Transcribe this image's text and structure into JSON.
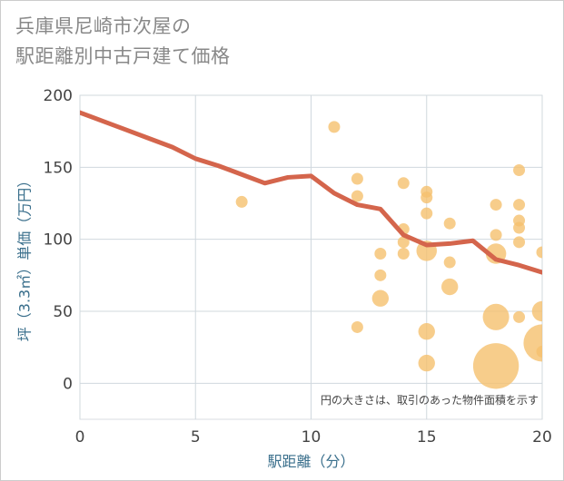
{
  "title_lines": [
    "兵庫県尼崎市次屋の",
    "駅距離別中古戸建て価格"
  ],
  "chart_data": {
    "type": "scatter",
    "xlabel": "駅距離（分）",
    "ylabel": "坪（3.3㎡）単価（万円）",
    "xlim": [
      0,
      20
    ],
    "ylim": [
      -25,
      200
    ],
    "xticks": [
      0,
      5,
      10,
      15,
      20
    ],
    "yticks": [
      0,
      50,
      100,
      150,
      200
    ],
    "grid": true,
    "note": "円の大きさは、取引のあった物件面積を示す",
    "bubble_color": "#f5c06e",
    "line_color": "#d4654c",
    "scatter": [
      {
        "x": 7,
        "y": 126,
        "size": 1
      },
      {
        "x": 11,
        "y": 178,
        "size": 1
      },
      {
        "x": 12,
        "y": 142,
        "size": 1
      },
      {
        "x": 12,
        "y": 130,
        "size": 1
      },
      {
        "x": 12,
        "y": 39,
        "size": 1
      },
      {
        "x": 13,
        "y": 90,
        "size": 1
      },
      {
        "x": 13,
        "y": 75,
        "size": 1
      },
      {
        "x": 13,
        "y": 59,
        "size": 2
      },
      {
        "x": 14,
        "y": 139,
        "size": 1
      },
      {
        "x": 14,
        "y": 107,
        "size": 1
      },
      {
        "x": 14,
        "y": 98,
        "size": 1
      },
      {
        "x": 14,
        "y": 90,
        "size": 1
      },
      {
        "x": 15,
        "y": 133,
        "size": 1
      },
      {
        "x": 15,
        "y": 129,
        "size": 1
      },
      {
        "x": 15,
        "y": 118,
        "size": 1
      },
      {
        "x": 15,
        "y": 92,
        "size": 3
      },
      {
        "x": 15,
        "y": 36,
        "size": 2
      },
      {
        "x": 15,
        "y": 14,
        "size": 2
      },
      {
        "x": 16,
        "y": 111,
        "size": 1
      },
      {
        "x": 16,
        "y": 84,
        "size": 1
      },
      {
        "x": 16,
        "y": 67,
        "size": 2
      },
      {
        "x": 18,
        "y": 124,
        "size": 1
      },
      {
        "x": 18,
        "y": 103,
        "size": 1
      },
      {
        "x": 18,
        "y": 90,
        "size": 3
      },
      {
        "x": 18,
        "y": 46,
        "size": 5
      },
      {
        "x": 18,
        "y": 12,
        "size": 15
      },
      {
        "x": 19,
        "y": 148,
        "size": 1
      },
      {
        "x": 19,
        "y": 124,
        "size": 1
      },
      {
        "x": 19,
        "y": 113,
        "size": 1
      },
      {
        "x": 19,
        "y": 108,
        "size": 1
      },
      {
        "x": 19,
        "y": 98,
        "size": 1
      },
      {
        "x": 19,
        "y": 46,
        "size": 1
      },
      {
        "x": 20,
        "y": 91,
        "size": 1
      },
      {
        "x": 20,
        "y": 50,
        "size": 3
      },
      {
        "x": 20,
        "y": 28,
        "size": 10
      },
      {
        "x": 20,
        "y": 22,
        "size": 1
      }
    ],
    "line": {
      "x": [
        0,
        1,
        2,
        3,
        4,
        5,
        6,
        7,
        8,
        9,
        10,
        11,
        12,
        13,
        14,
        15,
        16,
        17,
        18,
        19,
        20
      ],
      "y": [
        188,
        182,
        176,
        170,
        164,
        156,
        151,
        145,
        139,
        143,
        144,
        132,
        124,
        121,
        103,
        96,
        97,
        99,
        86,
        82,
        77
      ]
    }
  }
}
